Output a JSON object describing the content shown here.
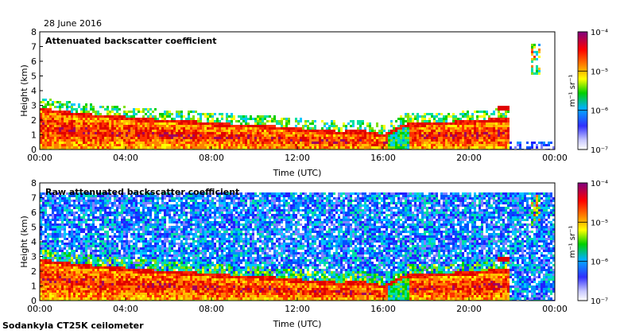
{
  "header": {
    "date": "28 June 2016"
  },
  "footer": {
    "instrument": "Sodankyla CT25K ceilometer"
  },
  "chart_data": [
    {
      "type": "heatmap",
      "title": "Attenuated backscatter coefficient",
      "xlabel": "Time (UTC)",
      "ylabel": "Height (km)",
      "xlim": [
        0,
        24
      ],
      "ylim": [
        0,
        8
      ],
      "x_ticks": [
        "00:00",
        "04:00",
        "08:00",
        "12:00",
        "16:00",
        "20:00",
        "00:00"
      ],
      "y_ticks": [
        "0",
        "1",
        "2",
        "3",
        "4",
        "5",
        "6",
        "7",
        "8"
      ],
      "colorbar": {
        "label": "m⁻¹ sr⁻¹",
        "ticks": [
          "10⁻⁷",
          "10⁻⁶",
          "10⁻⁵",
          "10⁻⁴"
        ],
        "log_range": [
          -7,
          -4
        ]
      },
      "boundary_layer_top_km": [
        [
          0,
          2.6
        ],
        [
          1,
          2.4
        ],
        [
          2,
          2.2
        ],
        [
          3,
          2.1
        ],
        [
          4,
          2.0
        ],
        [
          5,
          1.85
        ],
        [
          6,
          1.8
        ],
        [
          7,
          1.7
        ],
        [
          8,
          1.6
        ],
        [
          9,
          1.5
        ],
        [
          10,
          1.45
        ],
        [
          11,
          1.35
        ],
        [
          12,
          1.2
        ],
        [
          13,
          1.1
        ],
        [
          14,
          1.0
        ],
        [
          15,
          1.1
        ],
        [
          16,
          0.8
        ],
        [
          17,
          1.5
        ],
        [
          18,
          1.6
        ],
        [
          19,
          1.65
        ],
        [
          20,
          1.7
        ],
        [
          21,
          1.85
        ]
      ],
      "noise_level": "low"
    },
    {
      "type": "heatmap",
      "title": "Raw attenuated backscatter coefficient",
      "xlabel": "Time (UTC)",
      "ylabel": "Height (km)",
      "xlim": [
        0,
        24
      ],
      "ylim": [
        0,
        8
      ],
      "x_ticks": [
        "00:00",
        "04:00",
        "08:00",
        "12:00",
        "16:00",
        "20:00",
        "00:00"
      ],
      "y_ticks": [
        "0",
        "1",
        "2",
        "3",
        "4",
        "5",
        "6",
        "7",
        "8"
      ],
      "colorbar": {
        "label": "m⁻¹ sr⁻¹",
        "ticks": [
          "10⁻⁷",
          "10⁻⁶",
          "10⁻⁵",
          "10⁻⁴"
        ],
        "log_range": [
          -7,
          -4
        ]
      },
      "boundary_layer_top_km": [
        [
          0,
          2.6
        ],
        [
          1,
          2.4
        ],
        [
          2,
          2.2
        ],
        [
          3,
          2.1
        ],
        [
          4,
          2.0
        ],
        [
          5,
          1.85
        ],
        [
          6,
          1.8
        ],
        [
          7,
          1.7
        ],
        [
          8,
          1.6
        ],
        [
          9,
          1.5
        ],
        [
          10,
          1.45
        ],
        [
          11,
          1.35
        ],
        [
          12,
          1.2
        ],
        [
          13,
          1.1
        ],
        [
          14,
          1.0
        ],
        [
          15,
          1.1
        ],
        [
          16,
          0.8
        ],
        [
          17,
          1.5
        ],
        [
          18,
          1.6
        ],
        [
          19,
          1.65
        ],
        [
          20,
          1.7
        ],
        [
          21,
          1.85
        ]
      ],
      "noise_level": "high"
    }
  ]
}
